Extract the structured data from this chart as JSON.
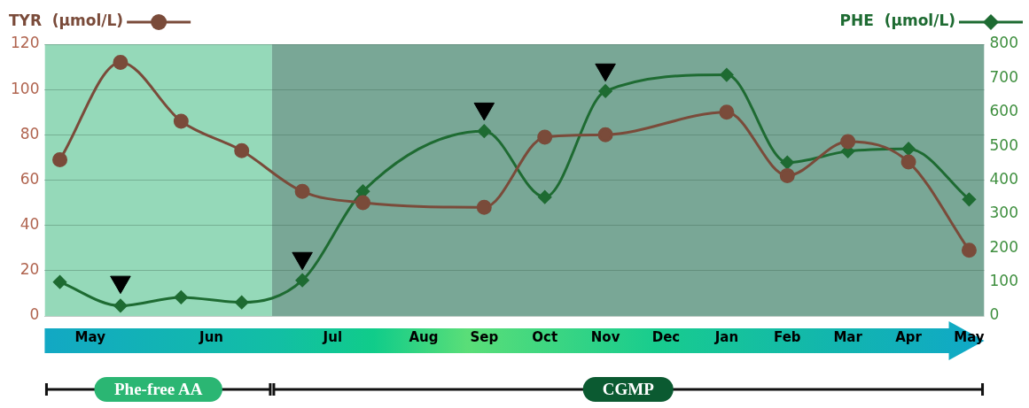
{
  "chart_data": {
    "type": "line",
    "categories": [
      null,
      "May",
      null,
      null,
      null,
      "Jun",
      null,
      null,
      null,
      "Jul",
      null,
      null,
      "Aug",
      null,
      "Sep",
      null,
      "Oct",
      null,
      "Nov",
      null,
      "Dec",
      null,
      "Jan",
      null,
      "Feb",
      null,
      "Mar",
      null,
      "Apr",
      null,
      "May"
    ],
    "series": [
      {
        "name": "TYR  (μmol/L)",
        "color": "#7a4b3a",
        "marker": "circle",
        "values": [
          69,
          null,
          112,
          null,
          86,
          null,
          73,
          null,
          55,
          null,
          50,
          null,
          null,
          null,
          48,
          null,
          79,
          null,
          80,
          null,
          null,
          null,
          90,
          null,
          62,
          null,
          77,
          null,
          68,
          null,
          29
        ]
      },
      {
        "name": "PHE  (μmol/L)",
        "color": "#1e6b32",
        "marker": "diamond",
        "axis": "y2",
        "values": [
          100,
          null,
          30,
          null,
          55,
          null,
          40,
          null,
          105,
          null,
          367,
          null,
          null,
          null,
          544,
          null,
          350,
          null,
          662,
          null,
          null,
          null,
          710,
          null,
          452,
          null,
          485,
          null,
          492,
          null,
          343
        ]
      },
      {
        "type": "scatter",
        "color": "#000000",
        "marker": "triangle",
        "axis": "y2",
        "values": [
          null,
          null,
          100,
          null,
          null,
          null,
          null,
          null,
          170,
          null,
          null,
          null,
          null,
          null,
          610,
          null,
          null,
          null,
          725,
          null,
          null,
          null,
          null,
          null,
          null,
          null,
          null,
          null,
          null,
          null,
          null
        ]
      }
    ],
    "ylim": [
      0,
      120
    ],
    "yticks": [
      0,
      20,
      40,
      60,
      80,
      100,
      120
    ],
    "y2lim": [
      0,
      800
    ],
    "y2ticks": [
      0,
      100,
      200,
      300,
      400,
      500,
      600,
      700,
      800
    ],
    "grid": "y",
    "legend": "top",
    "annotations": [
      "Phe-free AA",
      "CGMP"
    ]
  }
}
